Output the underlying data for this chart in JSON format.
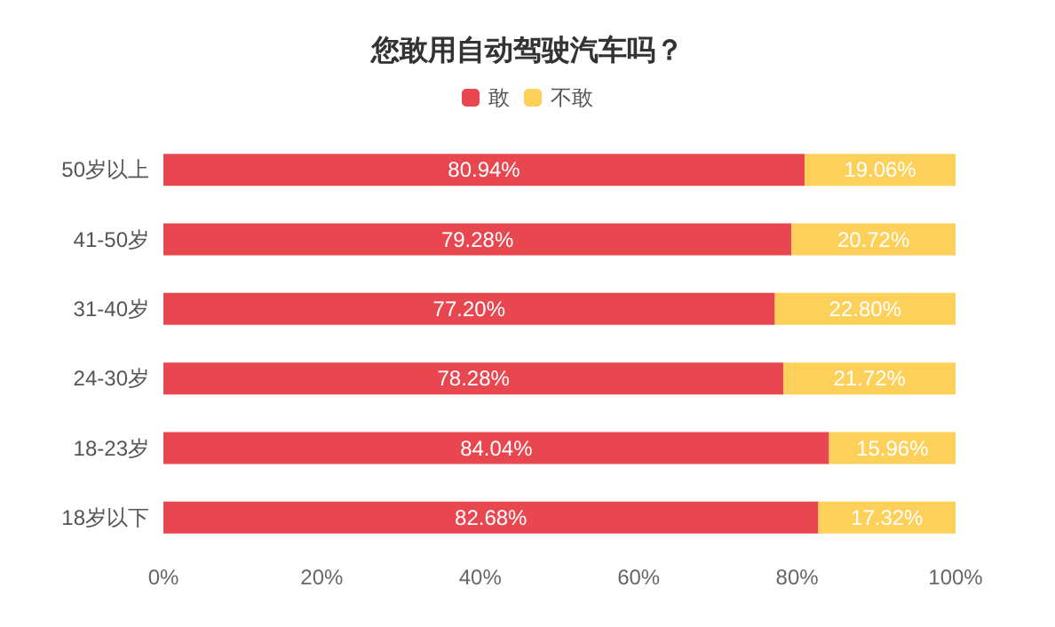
{
  "chart_data": {
    "type": "bar",
    "title": "您敢用自动驾驶汽车吗？",
    "orientation": "horizontal",
    "stacked": true,
    "categories": [
      "50岁以上",
      "41-50岁",
      "31-40岁",
      "24-30岁",
      "18-23岁",
      "18岁以下"
    ],
    "series": [
      {
        "name": "敢",
        "color": "#e8474f",
        "values": [
          80.94,
          79.28,
          77.2,
          78.28,
          84.04,
          82.68
        ],
        "value_labels": [
          "80.94%",
          "79.28%",
          "77.20%",
          "78.28%",
          "84.04%",
          "82.68%"
        ]
      },
      {
        "name": "不敢",
        "color": "#fdd05a",
        "values": [
          19.06,
          20.72,
          22.8,
          21.72,
          15.96,
          17.32
        ],
        "value_labels": [
          "19.06%",
          "20.72%",
          "22.80%",
          "21.72%",
          "15.96%",
          "17.32%"
        ]
      }
    ],
    "xlim": [
      0,
      100
    ],
    "xticks": [
      {
        "value": 0,
        "label": "0%"
      },
      {
        "value": 20,
        "label": "20%"
      },
      {
        "value": 40,
        "label": "40%"
      },
      {
        "value": 60,
        "label": "60%"
      },
      {
        "value": 80,
        "label": "80%"
      },
      {
        "value": 100,
        "label": "100%"
      }
    ],
    "legend": "top",
    "grid": false
  }
}
